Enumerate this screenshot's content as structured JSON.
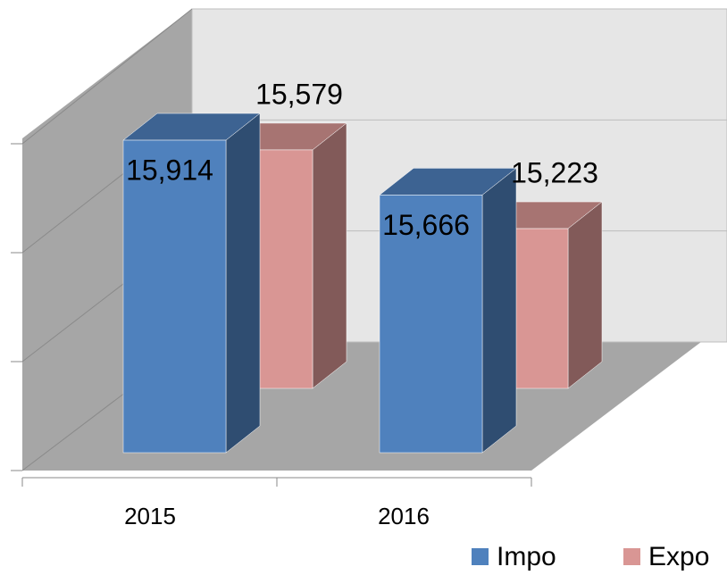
{
  "chart_data": {
    "type": "bar3d",
    "categories": [
      "2015",
      "2016"
    ],
    "series": [
      {
        "name": "Impo",
        "color": "#4f81bd",
        "values": [
          15914,
          15666
        ],
        "value_labels": [
          "15,914",
          "15,666"
        ]
      },
      {
        "name": "Expo",
        "color": "#d99694",
        "values": [
          15579,
          15223
        ],
        "value_labels": [
          "15,579",
          "15,223"
        ]
      }
    ],
    "ylim": [
      14500,
      16000
    ],
    "yticks": [
      14500,
      15000,
      15500,
      16000
    ],
    "grid": true,
    "legend": "bottom-right"
  }
}
